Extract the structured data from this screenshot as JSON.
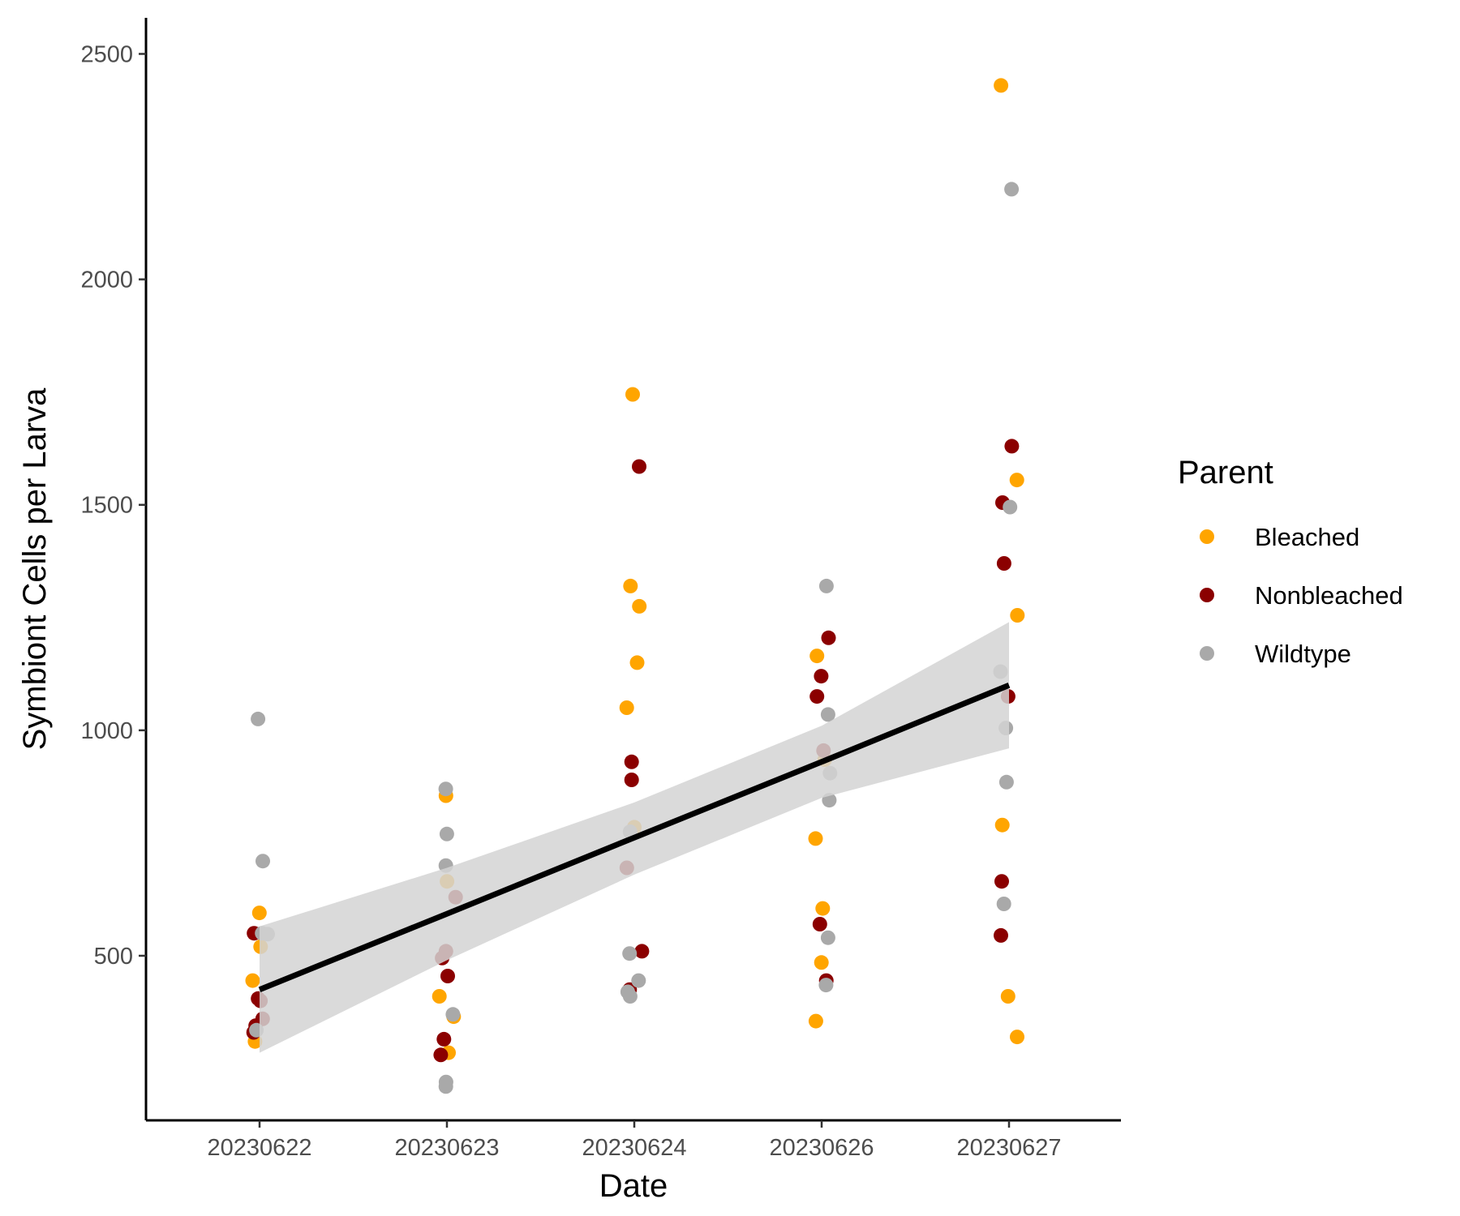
{
  "chart_data": {
    "type": "scatter",
    "title": "",
    "xlabel": "Date",
    "ylabel": "Symbiont Cells per Larva",
    "categories": [
      "20230622",
      "20230623",
      "20230624",
      "20230626",
      "20230627"
    ],
    "ylim": [
      135,
      2580
    ],
    "yticks": [
      500,
      1000,
      1500,
      2000,
      2500
    ],
    "grid": false,
    "legend": {
      "title": "Parent",
      "placement": "right",
      "entries": [
        {
          "name": "Bleached",
          "color": "#FFA500"
        },
        {
          "name": "Nonbleached",
          "color": "#8B0000"
        },
        {
          "name": "Wildtype",
          "color": "#A9A9A9"
        }
      ]
    },
    "series": [
      {
        "name": "Bleached",
        "color": "#FFA500",
        "points": [
          {
            "x": "20230622",
            "y": 595
          },
          {
            "x": "20230622",
            "y": 520
          },
          {
            "x": "20230622",
            "y": 445
          },
          {
            "x": "20230622",
            "y": 310
          },
          {
            "x": "20230623",
            "y": 855
          },
          {
            "x": "20230623",
            "y": 665
          },
          {
            "x": "20230623",
            "y": 410
          },
          {
            "x": "20230623",
            "y": 365
          },
          {
            "x": "20230623",
            "y": 285
          },
          {
            "x": "20230624",
            "y": 1745
          },
          {
            "x": "20230624",
            "y": 1320
          },
          {
            "x": "20230624",
            "y": 1275
          },
          {
            "x": "20230624",
            "y": 1150
          },
          {
            "x": "20230624",
            "y": 1050
          },
          {
            "x": "20230624",
            "y": 785
          },
          {
            "x": "20230626",
            "y": 1165
          },
          {
            "x": "20230626",
            "y": 935
          },
          {
            "x": "20230626",
            "y": 760
          },
          {
            "x": "20230626",
            "y": 605
          },
          {
            "x": "20230626",
            "y": 485
          },
          {
            "x": "20230626",
            "y": 355
          },
          {
            "x": "20230627",
            "y": 2430
          },
          {
            "x": "20230627",
            "y": 1555
          },
          {
            "x": "20230627",
            "y": 1255
          },
          {
            "x": "20230627",
            "y": 790
          },
          {
            "x": "20230627",
            "y": 410
          },
          {
            "x": "20230627",
            "y": 320
          }
        ]
      },
      {
        "name": "Nonbleached",
        "color": "#8B0000",
        "points": [
          {
            "x": "20230622",
            "y": 550
          },
          {
            "x": "20230622",
            "y": 405
          },
          {
            "x": "20230622",
            "y": 400
          },
          {
            "x": "20230622",
            "y": 360
          },
          {
            "x": "20230622",
            "y": 345
          },
          {
            "x": "20230622",
            "y": 330
          },
          {
            "x": "20230623",
            "y": 630
          },
          {
            "x": "20230623",
            "y": 510
          },
          {
            "x": "20230623",
            "y": 495
          },
          {
            "x": "20230623",
            "y": 455
          },
          {
            "x": "20230623",
            "y": 315
          },
          {
            "x": "20230623",
            "y": 280
          },
          {
            "x": "20230624",
            "y": 1585
          },
          {
            "x": "20230624",
            "y": 930
          },
          {
            "x": "20230624",
            "y": 890
          },
          {
            "x": "20230624",
            "y": 695
          },
          {
            "x": "20230624",
            "y": 510
          },
          {
            "x": "20230624",
            "y": 425
          },
          {
            "x": "20230626",
            "y": 1205
          },
          {
            "x": "20230626",
            "y": 1120
          },
          {
            "x": "20230626",
            "y": 1075
          },
          {
            "x": "20230626",
            "y": 955
          },
          {
            "x": "20230626",
            "y": 570
          },
          {
            "x": "20230626",
            "y": 445
          },
          {
            "x": "20230627",
            "y": 1630
          },
          {
            "x": "20230627",
            "y": 1505
          },
          {
            "x": "20230627",
            "y": 1370
          },
          {
            "x": "20230627",
            "y": 1075
          },
          {
            "x": "20230627",
            "y": 665
          },
          {
            "x": "20230627",
            "y": 545
          }
        ]
      },
      {
        "name": "Wildtype",
        "color": "#A9A9A9",
        "points": [
          {
            "x": "20230622",
            "y": 1025
          },
          {
            "x": "20230622",
            "y": 710
          },
          {
            "x": "20230622",
            "y": 550
          },
          {
            "x": "20230622",
            "y": 548
          },
          {
            "x": "20230622",
            "y": 335
          },
          {
            "x": "20230623",
            "y": 870
          },
          {
            "x": "20230623",
            "y": 770
          },
          {
            "x": "20230623",
            "y": 700
          },
          {
            "x": "20230623",
            "y": 370
          },
          {
            "x": "20230623",
            "y": 220
          },
          {
            "x": "20230623",
            "y": 210
          },
          {
            "x": "20230624",
            "y": 775
          },
          {
            "x": "20230624",
            "y": 505
          },
          {
            "x": "20230624",
            "y": 445
          },
          {
            "x": "20230624",
            "y": 420
          },
          {
            "x": "20230624",
            "y": 410
          },
          {
            "x": "20230626",
            "y": 1320
          },
          {
            "x": "20230626",
            "y": 1035
          },
          {
            "x": "20230626",
            "y": 905
          },
          {
            "x": "20230626",
            "y": 845
          },
          {
            "x": "20230626",
            "y": 540
          },
          {
            "x": "20230626",
            "y": 435
          },
          {
            "x": "20230627",
            "y": 2200
          },
          {
            "x": "20230627",
            "y": 1495
          },
          {
            "x": "20230627",
            "y": 1130
          },
          {
            "x": "20230627",
            "y": 1005
          },
          {
            "x": "20230627",
            "y": 885
          },
          {
            "x": "20230627",
            "y": 615
          }
        ]
      }
    ],
    "trend": {
      "name": "linear fit",
      "color": "#000000",
      "band_color": "#D3D3D3",
      "fit": [
        425,
        593,
        762,
        930,
        1100
      ],
      "upper": [
        565,
        695,
        840,
        1010,
        1240
      ],
      "lower": [
        285,
        490,
        680,
        850,
        960
      ]
    }
  }
}
